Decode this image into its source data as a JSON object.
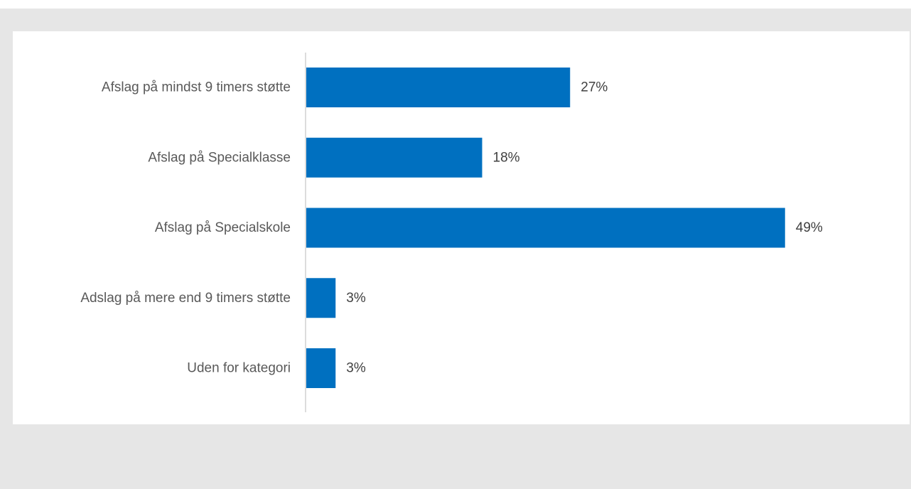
{
  "chart_data": {
    "type": "bar",
    "orientation": "horizontal",
    "categories": [
      "Afslag på mindst 9 timers støtte",
      "Afslag på Specialklasse",
      "Afslag på Specialskole",
      "Adslag på mere end 9 timers støtte",
      "Uden for kategori"
    ],
    "values": [
      27,
      18,
      49,
      3,
      3
    ],
    "value_labels": [
      "27%",
      "18%",
      "49%",
      "3%",
      "3%"
    ],
    "unit": "%",
    "title": "",
    "xlabel": "",
    "ylabel": "",
    "xlim": [
      0,
      100
    ],
    "grid": false,
    "legend": "none",
    "colors": {
      "bar": "#0070c0",
      "axis": "#d0d0d0",
      "category_text": "#595959",
      "value_text": "#404040"
    }
  }
}
